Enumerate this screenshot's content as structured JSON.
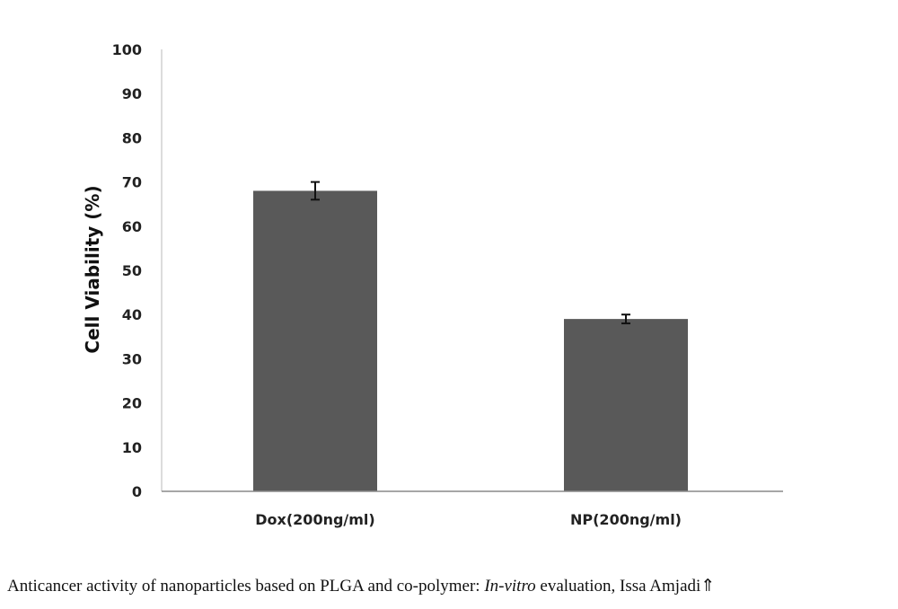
{
  "chart_data": {
    "type": "bar",
    "title": "",
    "xlabel": "",
    "ylabel": "Cell Viability (%)",
    "ylim": [
      0,
      100
    ],
    "yticks": [
      "0",
      "10",
      "20",
      "30",
      "40",
      "50",
      "60",
      "70",
      "80",
      "90",
      "100"
    ],
    "categories": [
      "Dox(200ng/ml)",
      "NP(200ng/ml)"
    ],
    "values": [
      68,
      39
    ],
    "errors": [
      2,
      1
    ],
    "bar_color": "#595959",
    "grid": false,
    "legend": "none"
  },
  "caption": {
    "text_before": "Anticancer activity of nanoparticles based on PLGA and co-polymer: ",
    "text_italic": "In-vitro",
    "text_after": " evaluation, Issa Amjadi⇑"
  }
}
